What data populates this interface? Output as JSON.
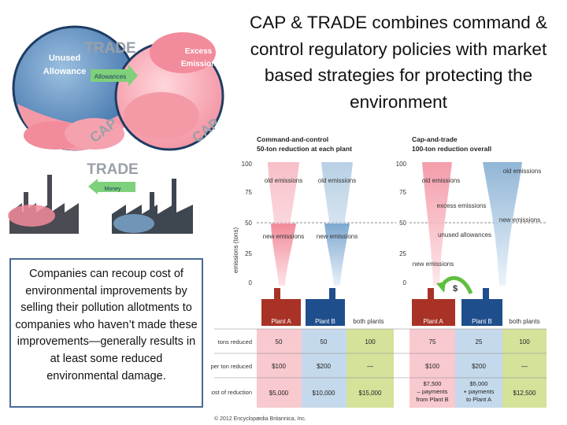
{
  "slide": {
    "title": "CAP & TRADE combines command & control regulatory policies with market based strategies for protecting the environment",
    "note": "Companies can recoup cost of environmental improvements by selling their pollution allotments to companies who haven’t made these improvements—generally results in at least some reduced environmental damage."
  },
  "illustration": {
    "trade_top": "TRADE",
    "trade_bottom": "TRADE",
    "unused_l1": "Unused",
    "unused_l2": "Allowance",
    "excess_l1": "Excess",
    "excess_l2": "Emission",
    "allowances": "Allowances",
    "cap_left": "CAP",
    "cap_right": "CAP",
    "money": "Money"
  },
  "comparison": {
    "left_heading_l1": "Command-and-control",
    "left_heading_l2": "50-ton reduction at each plant",
    "right_heading_l1": "Cap-and-trade",
    "right_heading_l2": "100-ton reduction overall",
    "y_axis_label": "emissions (tons)",
    "y_ticks": [
      "100",
      "75",
      "50",
      "25",
      "0"
    ],
    "labels": {
      "old_emissions": "old emissions",
      "new_emissions": "new emissions",
      "excess_emissions": "excess emissions",
      "unused_allowances": "unused allowances",
      "dollar": "$"
    },
    "column_headers": [
      "Plant A",
      "Plant B",
      "both plants",
      "Plant A",
      "Plant B",
      "both plants"
    ],
    "row_labels": [
      "tons reduced",
      "cost per ton reduced",
      "cost of reduction"
    ],
    "rows": [
      [
        "50",
        "50",
        "100",
        "75",
        "25",
        "100"
      ],
      [
        "$100",
        "$200",
        "—",
        "$100",
        "$200",
        "—"
      ],
      [
        "$5,000",
        "$10,000",
        "$15,000",
        "$7,500 – payments from Plant B",
        "$5,000 + payments to Plant A",
        "$12,500"
      ]
    ],
    "credit": "© 2012 Encyclopædia Britannica, Inc."
  },
  "colors": {
    "pink": "#f28b9b",
    "blue_gray": "#7ea9cf",
    "factory_dark": "#4a4a52",
    "plant_a_red": "#c0392b",
    "plant_b_blue": "#1f4e8c",
    "table_green": "#d4e29a",
    "note_border": "#4a6b95"
  }
}
